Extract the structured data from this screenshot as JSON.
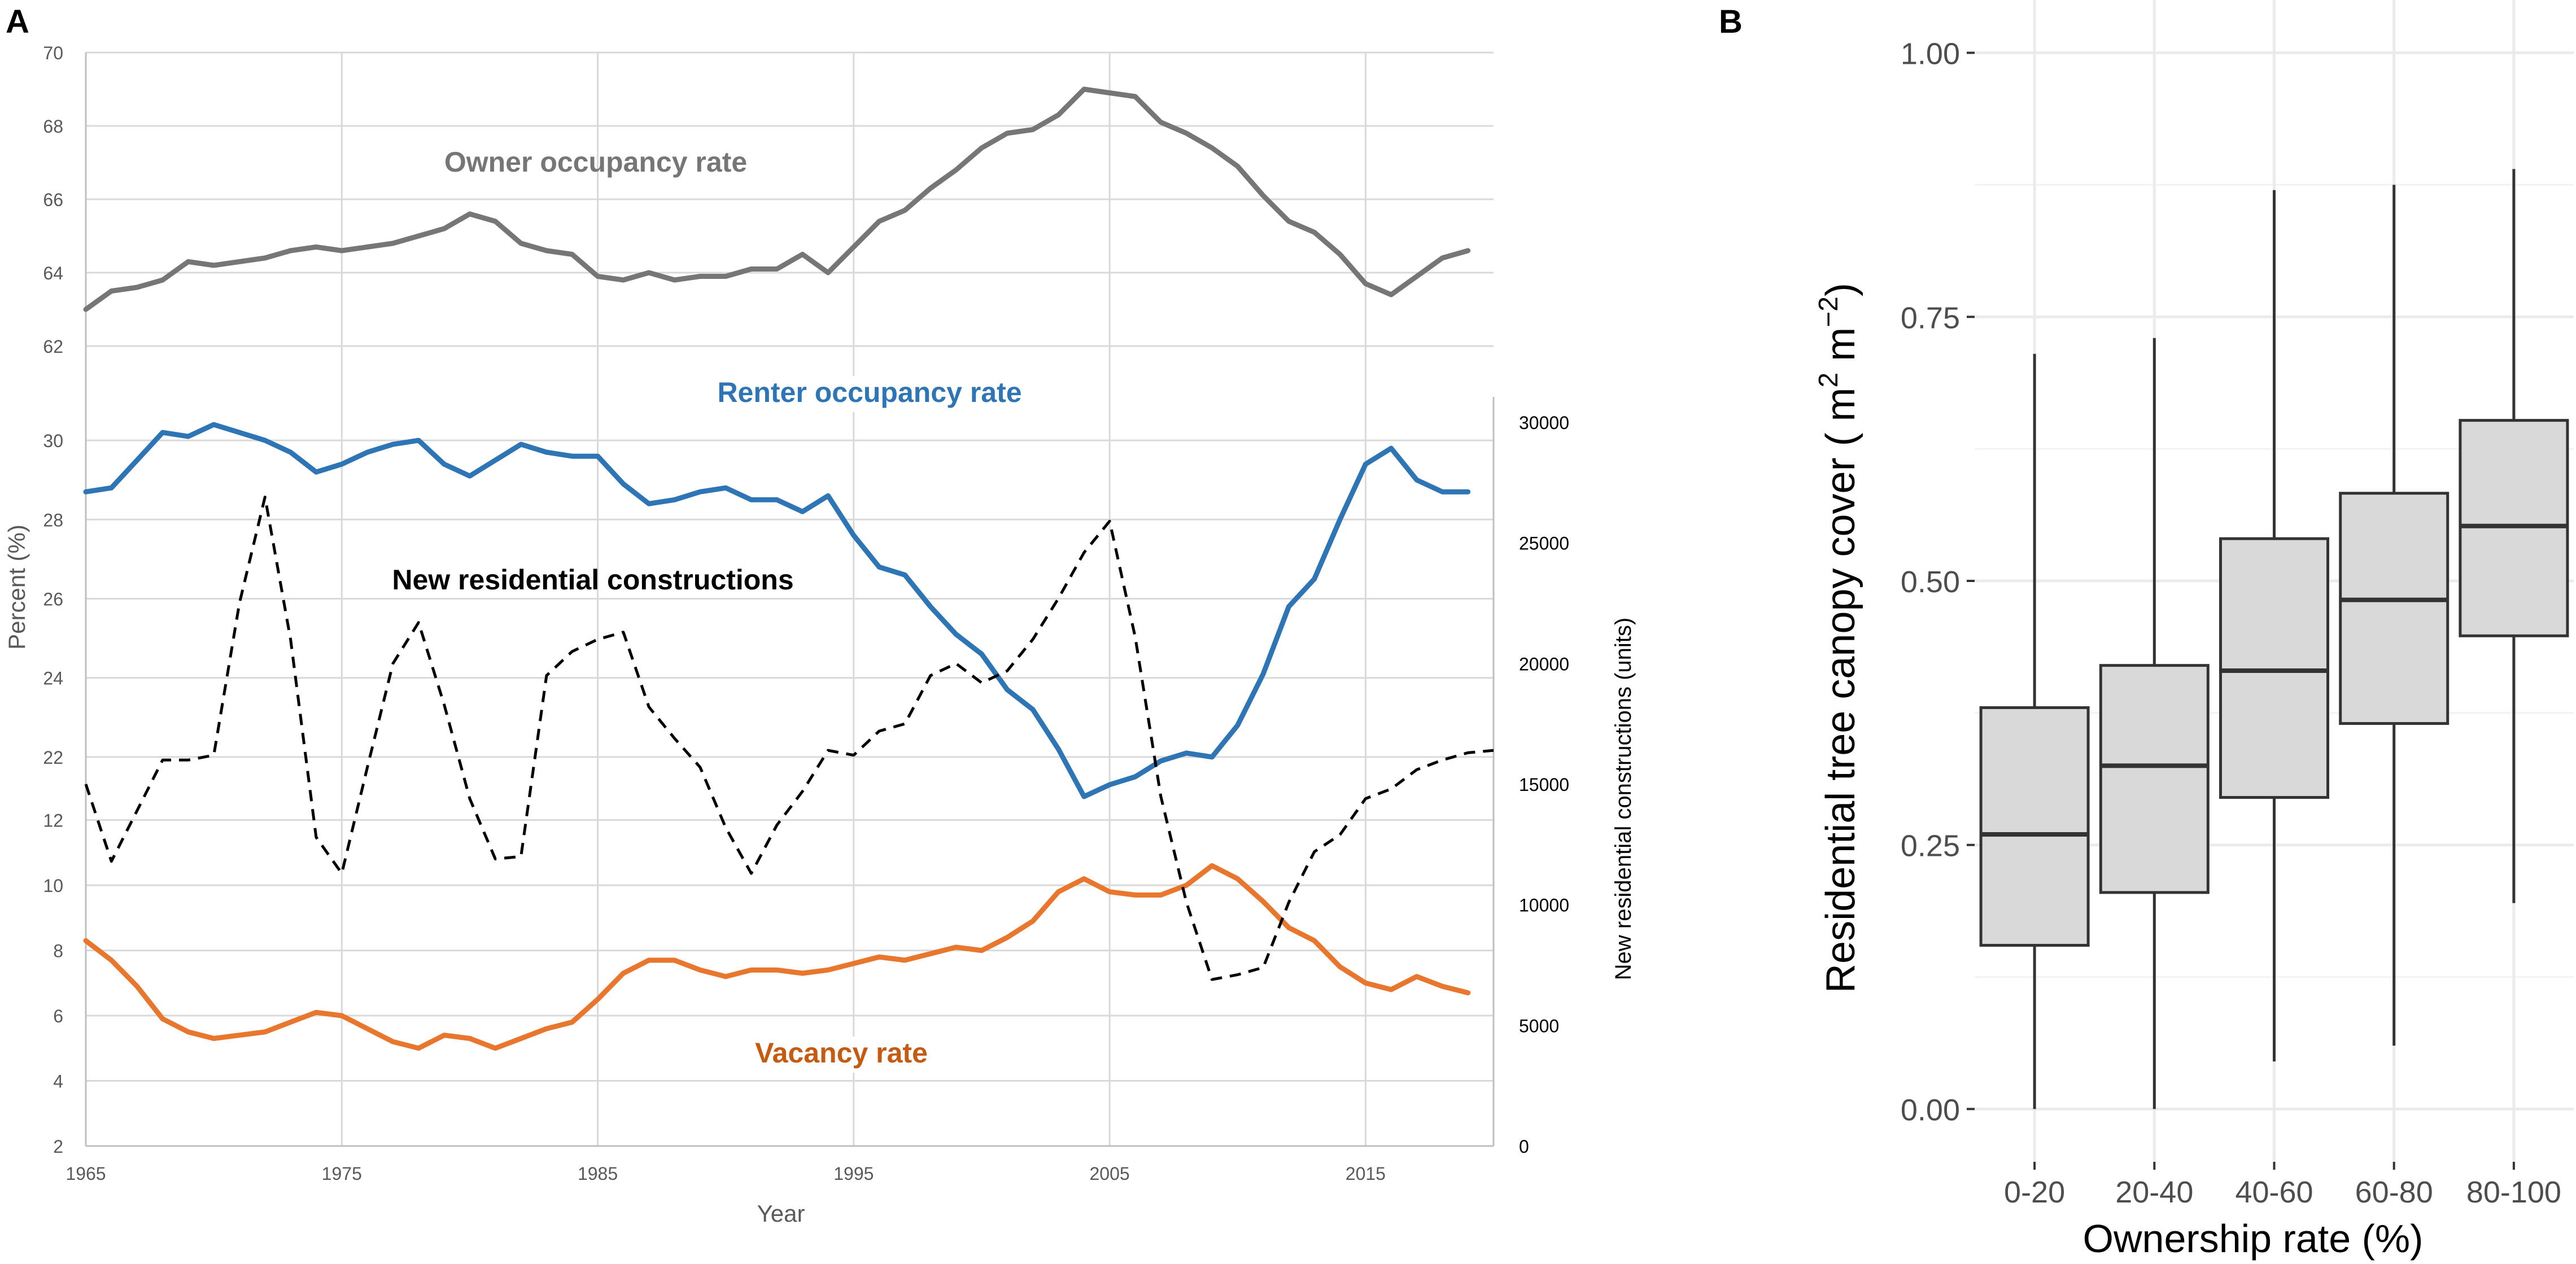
{
  "chart_data": [
    {
      "panel_label": "A",
      "type": "line",
      "xlabel": "Year",
      "x_ticks": [
        "1965",
        "1975",
        "1985",
        "1995",
        "2005",
        "2015"
      ],
      "xlim": [
        1965,
        2020
      ],
      "left_axis_label": "Percent (%)",
      "right_axis_label": "New residential constructions (units)",
      "right_ticks": [
        "0",
        "5000",
        "10000",
        "15000",
        "20000",
        "25000",
        "30000"
      ],
      "right_range": [
        0,
        30000
      ],
      "subpanels": {
        "owner": {
          "ticks": [
            "62",
            "64",
            "66",
            "68",
            "70"
          ],
          "ylim": [
            62,
            70
          ]
        },
        "renter": {
          "ticks": [
            "22",
            "24",
            "26",
            "28",
            "30"
          ],
          "ylim": [
            20.9,
            31.1
          ]
        },
        "vacancy": {
          "ticks": [
            "2",
            "4",
            "6",
            "8",
            "10",
            "12"
          ],
          "ylim": [
            2,
            12.6
          ]
        }
      },
      "series": [
        {
          "name": "Owner occupancy rate",
          "label": "Owner occupancy rate",
          "color": "#767676",
          "subpanel": "owner",
          "style": "solid",
          "x": [
            1965,
            1966,
            1967,
            1968,
            1969,
            1970,
            1971,
            1972,
            1973,
            1974,
            1975,
            1976,
            1977,
            1978,
            1979,
            1980,
            1981,
            1982,
            1983,
            1984,
            1985,
            1986,
            1987,
            1988,
            1989,
            1990,
            1991,
            1992,
            1993,
            1994,
            1995,
            1996,
            1997,
            1998,
            1999,
            2000,
            2001,
            2002,
            2003,
            2004,
            2005,
            2006,
            2007,
            2008,
            2009,
            2010,
            2011,
            2012,
            2013,
            2014,
            2015,
            2016,
            2017,
            2018,
            2019
          ],
          "values": [
            63.0,
            63.5,
            63.6,
            63.8,
            64.3,
            64.2,
            64.3,
            64.4,
            64.6,
            64.7,
            64.6,
            64.7,
            64.8,
            65.0,
            65.2,
            65.6,
            65.4,
            64.8,
            64.6,
            64.5,
            63.9,
            63.8,
            64.0,
            63.8,
            63.9,
            63.9,
            64.1,
            64.1,
            64.5,
            64.0,
            64.7,
            65.4,
            65.7,
            66.3,
            66.8,
            67.4,
            67.8,
            67.9,
            68.3,
            69.0,
            68.9,
            68.8,
            68.1,
            67.8,
            67.4,
            66.9,
            66.1,
            65.4,
            65.1,
            64.5,
            63.7,
            63.4,
            63.9,
            64.4,
            64.6
          ]
        },
        {
          "name": "Renter occupancy rate",
          "label": "Renter occupancy rate",
          "color": "#2e75b6",
          "subpanel": "renter",
          "style": "solid",
          "x": [
            1965,
            1966,
            1967,
            1968,
            1969,
            1970,
            1971,
            1972,
            1973,
            1974,
            1975,
            1976,
            1977,
            1978,
            1979,
            1980,
            1981,
            1982,
            1983,
            1984,
            1985,
            1986,
            1987,
            1988,
            1989,
            1990,
            1991,
            1992,
            1993,
            1994,
            1995,
            1996,
            1997,
            1998,
            1999,
            2000,
            2001,
            2002,
            2003,
            2004,
            2005,
            2006,
            2007,
            2008,
            2009,
            2010,
            2011,
            2012,
            2013,
            2014,
            2015,
            2016,
            2017,
            2018,
            2019
          ],
          "values": [
            28.7,
            28.8,
            29.5,
            30.2,
            30.1,
            30.4,
            30.2,
            30.0,
            29.7,
            29.2,
            29.4,
            29.7,
            29.9,
            30.0,
            29.4,
            29.1,
            29.5,
            29.9,
            29.7,
            29.6,
            29.6,
            28.9,
            28.4,
            28.5,
            28.7,
            28.8,
            28.5,
            28.5,
            28.2,
            28.6,
            27.6,
            26.8,
            26.6,
            25.8,
            25.1,
            24.6,
            23.7,
            23.2,
            22.2,
            21.0,
            21.3,
            21.5,
            21.9,
            22.1,
            22.0,
            22.8,
            24.1,
            25.8,
            26.5,
            28.0,
            29.4,
            29.8,
            29.0,
            28.7,
            28.7
          ]
        },
        {
          "name": "Vacancy rate",
          "label": "Vacancy rate",
          "color": "#e8762c",
          "subpanel": "vacancy",
          "style": "solid",
          "x": [
            1965,
            1966,
            1967,
            1968,
            1969,
            1970,
            1971,
            1972,
            1973,
            1974,
            1975,
            1976,
            1977,
            1978,
            1979,
            1980,
            1981,
            1982,
            1983,
            1984,
            1985,
            1986,
            1987,
            1988,
            1989,
            1990,
            1991,
            1992,
            1993,
            1994,
            1995,
            1996,
            1997,
            1998,
            1999,
            2000,
            2001,
            2002,
            2003,
            2004,
            2005,
            2006,
            2007,
            2008,
            2009,
            2010,
            2011,
            2012,
            2013,
            2014,
            2015,
            2016,
            2017,
            2018,
            2019
          ],
          "values": [
            8.3,
            7.7,
            6.9,
            5.9,
            5.5,
            5.3,
            5.4,
            5.5,
            5.8,
            6.1,
            6.0,
            5.6,
            5.2,
            5.0,
            5.4,
            5.3,
            5.0,
            5.3,
            5.6,
            5.8,
            6.5,
            7.3,
            7.7,
            7.7,
            7.4,
            7.2,
            7.4,
            7.4,
            7.3,
            7.4,
            7.6,
            7.8,
            7.7,
            7.9,
            8.1,
            8.0,
            8.4,
            8.9,
            9.8,
            10.2,
            9.8,
            9.7,
            9.7,
            10.0,
            10.6,
            10.2,
            9.5,
            8.7,
            8.3,
            7.5,
            7.0,
            6.8,
            7.2,
            6.9,
            6.7
          ]
        },
        {
          "name": "New residential constructions",
          "label": "New residential constructions",
          "color": "#000000",
          "subpanel": "right",
          "style": "dashed",
          "x": [
            1965,
            1966,
            1967,
            1968,
            1969,
            1970,
            1971,
            1972,
            1973,
            1974,
            1975,
            1976,
            1977,
            1978,
            1979,
            1980,
            1981,
            1982,
            1983,
            1984,
            1985,
            1986,
            1987,
            1988,
            1989,
            1990,
            1991,
            1992,
            1993,
            1994,
            1995,
            1996,
            1997,
            1998,
            1999,
            2000,
            2001,
            2002,
            2003,
            2004,
            2005,
            2006,
            2007,
            2008,
            2009,
            2010,
            2011,
            2012,
            2013,
            2014,
            2015,
            2016,
            2017,
            2018,
            2019,
            2020
          ],
          "values": [
            15000,
            11800,
            13900,
            16000,
            16000,
            16200,
            22500,
            26900,
            21000,
            12800,
            11300,
            15700,
            20000,
            21700,
            18300,
            14400,
            11900,
            12000,
            19500,
            20500,
            21000,
            21300,
            18200,
            16900,
            15700,
            13200,
            11300,
            13300,
            14700,
            16400,
            16200,
            17200,
            17500,
            19500,
            20000,
            19200,
            19700,
            21000,
            22700,
            24600,
            25900,
            21100,
            14500,
            10100,
            6900,
            7100,
            7400,
            10100,
            12200,
            12900,
            14400,
            14800,
            15600,
            16000,
            16300,
            16400
          ]
        }
      ]
    },
    {
      "panel_label": "B",
      "type": "boxplot",
      "xlabel": "Ownership rate (%)",
      "ylabel_prefix": "Residential tree canopy cover ( m",
      "ylabel_sup1": "2",
      "ylabel_mid": " m",
      "ylabel_sup2": "−2",
      "ylabel_suffix": ")",
      "ylim": [
        -0.05,
        1.05
      ],
      "y_ticks": [
        "0.00",
        "0.25",
        "0.50",
        "0.75",
        "1.00"
      ],
      "categories": [
        "0-20",
        "20-40",
        "40-60",
        "60-80",
        "80-100"
      ],
      "boxes": [
        {
          "category": "0-20",
          "min": 0.0,
          "q1": 0.155,
          "median": 0.26,
          "q3": 0.38,
          "max": 0.715
        },
        {
          "category": "20-40",
          "min": 0.0,
          "q1": 0.205,
          "median": 0.325,
          "q3": 0.42,
          "max": 0.73
        },
        {
          "category": "40-60",
          "min": 0.045,
          "q1": 0.295,
          "median": 0.415,
          "q3": 0.54,
          "max": 0.87
        },
        {
          "category": "60-80",
          "min": 0.06,
          "q1": 0.365,
          "median": 0.482,
          "q3": 0.583,
          "max": 0.875
        },
        {
          "category": "80-100",
          "min": 0.195,
          "q1": 0.448,
          "median": 0.552,
          "q3": 0.652,
          "max": 0.89
        }
      ],
      "box_fill": "#d9d9d9",
      "grid_color": "#ebebeb"
    }
  ]
}
